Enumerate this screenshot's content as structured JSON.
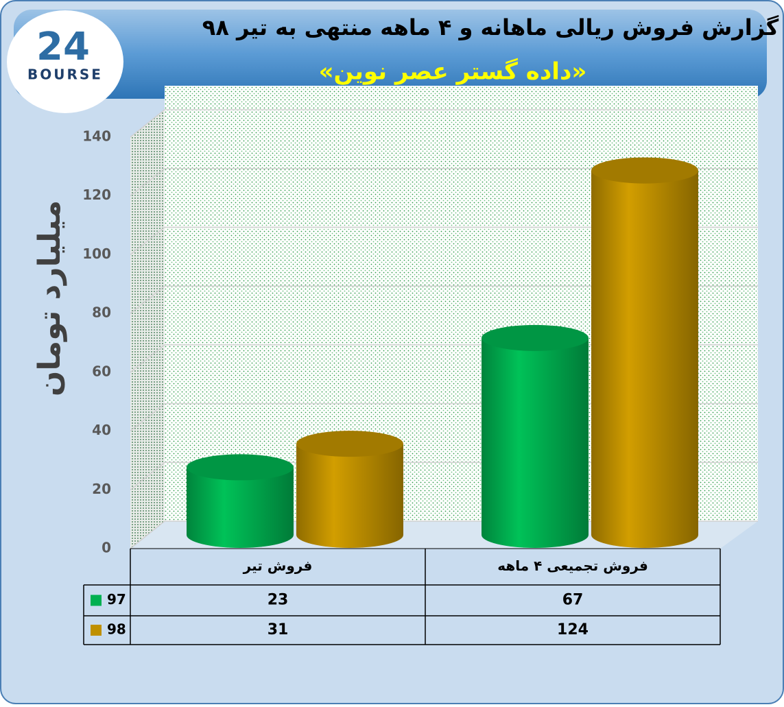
{
  "logo": {
    "number": "24",
    "name": "BOURSE"
  },
  "chart_data": {
    "type": "bar",
    "title": "گزارش فروش ریالی ماهانه و ۴ ماهه منتهی به تیر ۹۸",
    "subtitle": "«داده گستر عصر نوین»",
    "y_label": "میلیارد تومان",
    "categories": [
      "فروش تیر",
      "فروش تجمیعی ۴ ماهه"
    ],
    "series": [
      {
        "name": "97",
        "color": "#00b050",
        "values": [
          23,
          67
        ]
      },
      {
        "name": "98",
        "color": "#bf9000",
        "values": [
          31,
          124
        ]
      }
    ],
    "ylim": [
      0,
      140
    ],
    "yticks": [
      0,
      20,
      40,
      60,
      80,
      100,
      120,
      140
    ],
    "grid": true,
    "data_table": true
  }
}
